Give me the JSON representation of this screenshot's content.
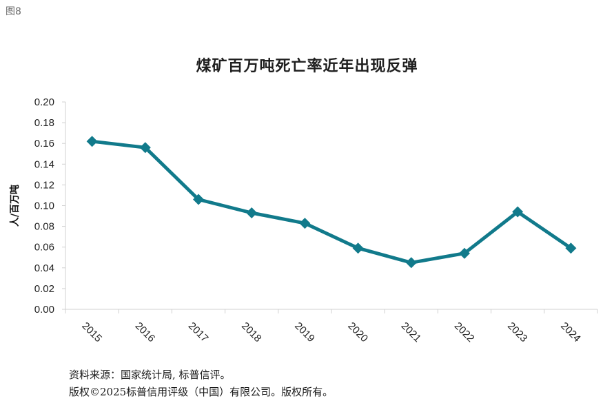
{
  "figure_label": "图8",
  "footer": {
    "source": "资料来源：国家统计局, 标普信评。",
    "copyright": "版权©2025标普信用评级（中国）有限公司。版权所有。"
  },
  "chart_data": {
    "type": "line",
    "title": "煤矿百万吨死亡率近年出现反弹",
    "xlabel": "",
    "ylabel": "人/百万吨",
    "x": [
      "2015",
      "2016",
      "2017",
      "2018",
      "2019",
      "2020",
      "2021",
      "2022",
      "2023",
      "2024"
    ],
    "series": [
      {
        "values": [
          0.162,
          0.156,
          0.106,
          0.093,
          0.083,
          0.059,
          0.045,
          0.054,
          0.094,
          0.059
        ]
      }
    ],
    "ylim": [
      0,
      0.2
    ],
    "yticks": [
      "0.00",
      "0.02",
      "0.04",
      "0.06",
      "0.08",
      "0.10",
      "0.12",
      "0.14",
      "0.16",
      "0.18",
      "0.20"
    ],
    "grid": false,
    "legend": "none",
    "line_color": "#117a8b",
    "marker": "diamond"
  }
}
